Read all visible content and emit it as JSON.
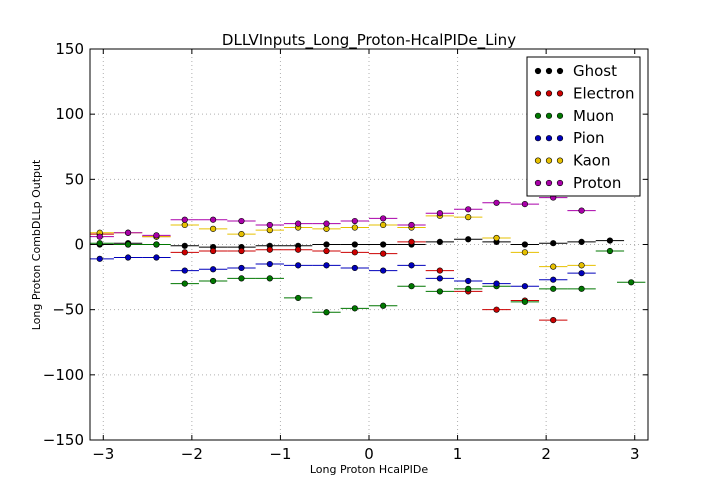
{
  "chart_data": {
    "type": "scatter",
    "title": "DLLVInputs_Long_Proton-HcalPIDe_Liny",
    "xlabel": "Long Proton HcalPIDe",
    "ylabel": "Long Proton CombDLLp Output",
    "xlim": [
      -3.15,
      3.15
    ],
    "ylim": [
      -150,
      150
    ],
    "xticks": [
      -3,
      -2,
      -1,
      0,
      1,
      2,
      3
    ],
    "yticks": [
      -150,
      -100,
      -50,
      0,
      50,
      100,
      150
    ],
    "grid": true,
    "legend_position": "top-right",
    "bin_half_width": 0.16,
    "series": [
      {
        "name": "Ghost",
        "color": "#000000",
        "x": [
          -3.04,
          -2.72,
          -2.4,
          -2.08,
          -1.76,
          -1.44,
          -1.12,
          -0.8,
          -0.48,
          -0.16,
          0.16,
          0.48,
          0.8,
          1.12,
          1.44,
          1.76,
          2.08,
          2.4,
          2.72
        ],
        "y": [
          0,
          1,
          0,
          -1,
          -2,
          -2,
          -1,
          -1,
          0,
          0,
          0,
          0,
          2,
          4,
          2,
          0,
          1,
          2,
          3
        ]
      },
      {
        "name": "Electron",
        "color": "#cc0000",
        "x": [
          -3.04,
          -2.72,
          -2.4,
          -2.08,
          -1.76,
          -1.44,
          -1.12,
          -0.8,
          -0.48,
          -0.16,
          0.16,
          0.48,
          0.8,
          1.12,
          1.44,
          1.76,
          2.08
        ],
        "y": [
          8,
          0,
          6,
          -6,
          -5,
          -5,
          -4,
          -4,
          -5,
          -6,
          -7,
          2,
          -20,
          -36,
          -50,
          -43,
          -58
        ]
      },
      {
        "name": "Muon",
        "color": "#007700",
        "x": [
          -3.04,
          -2.72,
          -2.4,
          -2.08,
          -1.76,
          -1.44,
          -1.12,
          -0.8,
          -0.48,
          -0.16,
          0.16,
          0.48,
          0.8,
          1.12,
          1.44,
          1.76,
          2.08,
          2.4,
          2.72,
          2.96
        ],
        "y": [
          1,
          0,
          0,
          -30,
          -28,
          -26,
          -26,
          -41,
          -52,
          -49,
          -47,
          -32,
          -36,
          -34,
          -32,
          -44,
          -34,
          -34,
          -5,
          -29
        ]
      },
      {
        "name": "Pion",
        "color": "#0000bb",
        "x": [
          -3.04,
          -2.72,
          -2.4,
          -2.08,
          -1.76,
          -1.44,
          -1.12,
          -0.8,
          -0.48,
          -0.16,
          0.16,
          0.48,
          0.8,
          1.12,
          1.44,
          1.76,
          2.08,
          2.4
        ],
        "y": [
          -11,
          -10,
          -10,
          -20,
          -19,
          -18,
          -15,
          -16,
          -16,
          -18,
          -20,
          -16,
          -26,
          -28,
          -30,
          -32,
          -27,
          -22
        ]
      },
      {
        "name": "Kaon",
        "color": "#e6c000",
        "x": [
          -3.04,
          -2.72,
          -2.4,
          -2.08,
          -1.76,
          -1.44,
          -1.12,
          -0.8,
          -0.48,
          -0.16,
          0.16,
          0.48,
          0.8,
          1.12,
          1.44,
          1.76,
          2.08,
          2.4
        ],
        "y": [
          9,
          9,
          6,
          15,
          12,
          8,
          11,
          13,
          12,
          13,
          15,
          13,
          22,
          21,
          5,
          -6,
          -17,
          -16
        ]
      },
      {
        "name": "Proton",
        "color": "#aa00aa",
        "x": [
          -3.04,
          -2.72,
          -2.4,
          -2.08,
          -1.76,
          -1.44,
          -1.12,
          -0.8,
          -0.48,
          -0.16,
          0.16,
          0.48,
          0.8,
          1.12,
          1.44,
          1.76,
          2.08,
          2.4
        ],
        "y": [
          6,
          9,
          7,
          19,
          19,
          18,
          15,
          16,
          16,
          18,
          20,
          15,
          24,
          27,
          32,
          31,
          36,
          26
        ]
      }
    ]
  }
}
